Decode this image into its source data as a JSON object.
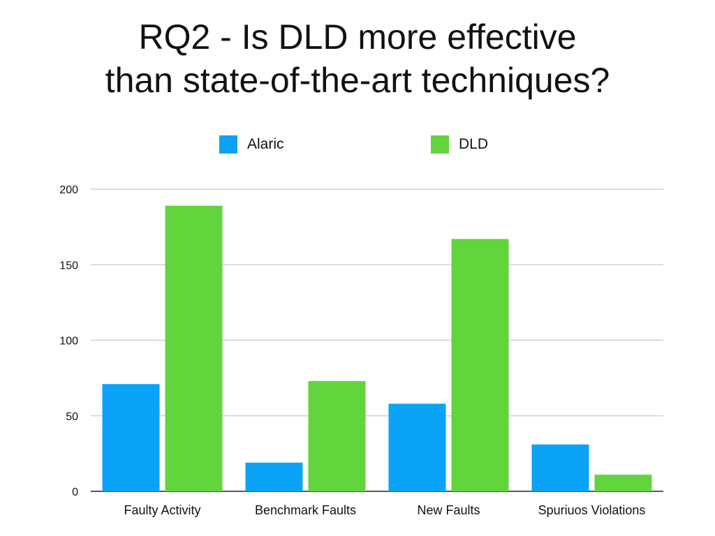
{
  "title_line1": "RQ2 - Is DLD more effective",
  "title_line2": "than state-of-the-art techniques?",
  "colors": {
    "alaric": "#0aa3f7",
    "dld": "#62d43c",
    "grid": "#c8c8c8",
    "axis": "#222222"
  },
  "chart_data": {
    "type": "bar",
    "title": "RQ2 - Is DLD more effective than state-of-the-art techniques?",
    "xlabel": "",
    "ylabel": "",
    "ylim": [
      0,
      200
    ],
    "yticks": [
      0,
      50,
      100,
      150,
      200
    ],
    "grid": true,
    "legend_position": "top",
    "categories": [
      "Faulty Activity",
      "Benchmark Faults",
      "New Faults",
      "Spuriuos Violations"
    ],
    "series": [
      {
        "name": "Alaric",
        "values": [
          71,
          19,
          58,
          31
        ]
      },
      {
        "name": "DLD",
        "values": [
          189,
          73,
          167,
          11
        ]
      }
    ]
  }
}
